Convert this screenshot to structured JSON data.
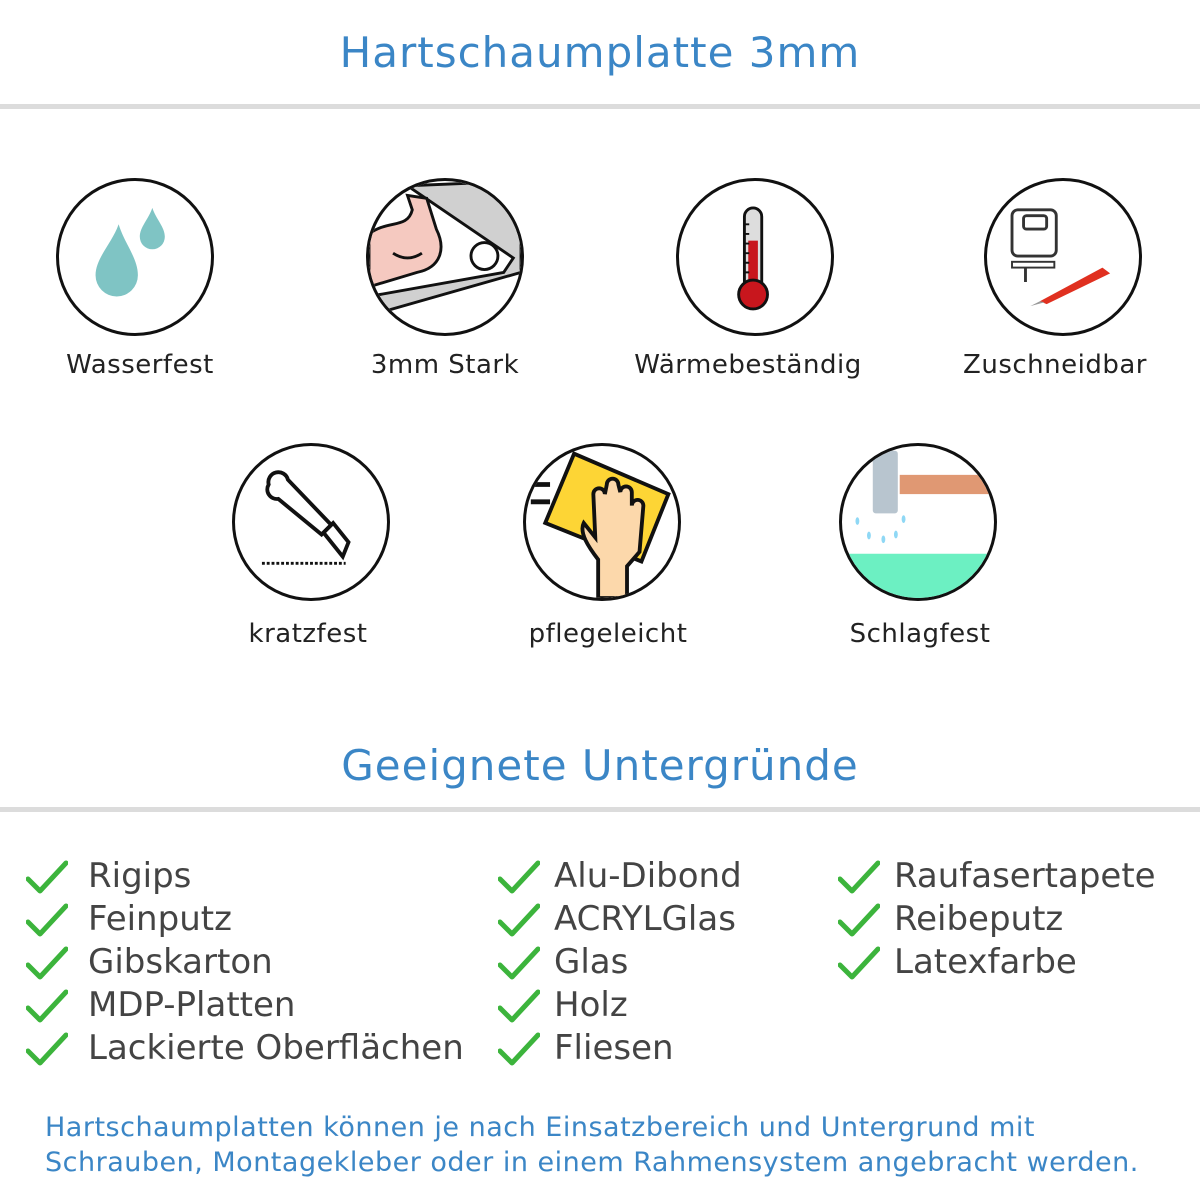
{
  "header": {
    "title": "Hartschaumplatte 3mm"
  },
  "features": [
    {
      "label": "Wasserfest",
      "icon": "water-drops-icon"
    },
    {
      "label": "3mm Stark",
      "icon": "strong-arm-icon"
    },
    {
      "label": "Wärmebeständig",
      "icon": "thermometer-icon"
    },
    {
      "label": "Zuschneidbar",
      "icon": "jigsaw-cutter-icon"
    },
    {
      "label": "kratzfest",
      "icon": "cutter-knife-icon"
    },
    {
      "label": "pflegeleicht",
      "icon": "cleaning-hand-icon"
    },
    {
      "label": "Schlagfest",
      "icon": "hammer-icon"
    }
  ],
  "surfaces": {
    "title": "Geeignete Untergründe",
    "columns": [
      [
        "Rigips",
        "Feinputz",
        "Gibskarton",
        "MDP-Platten",
        "Lackierte Oberflächen"
      ],
      [
        "Alu-Dibond",
        "ACRYLGlas",
        "Glas",
        "Holz",
        "Fliesen"
      ],
      [
        "Raufasertapete",
        "Reibeputz",
        "Latexfarbe"
      ]
    ],
    "check_color": "#3cb43c"
  },
  "footer": {
    "line1": "Hartschaumplatten können je nach Einsatzbereich und Untergrund mit",
    "line2": "Schrauben, Montagekleber oder in einem Rahmensystem angebracht werden."
  },
  "colors": {
    "accent": "#3b86c6",
    "rule": "#dcdcdc"
  }
}
